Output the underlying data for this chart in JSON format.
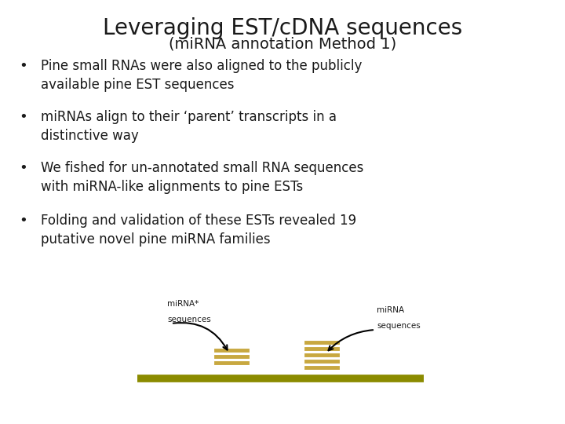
{
  "title": "Leveraging EST/cDNA sequences",
  "subtitle": "(miRNA annotation Method 1)",
  "bullets": [
    "Pine small RNAs were also aligned to the publicly\navailable pine EST sequences",
    "miRNAs align to their ‘parent’ transcripts in a\ndistinctive way",
    "We fished for un-annotated small RNA sequences\nwith miRNA-like alignments to pine ESTs",
    "Folding and validation of these ESTs revealed 19\nputative novel pine miRNA families"
  ],
  "background_color": "#ffffff",
  "title_fontsize": 20,
  "subtitle_fontsize": 14,
  "bullet_fontsize": 12,
  "text_color": "#1a1a1a",
  "arrow_color": "#000000",
  "bar_color_line": "#8b8b00",
  "bar_color_stacks": "#c8a840",
  "label_fontsize": 7.5
}
